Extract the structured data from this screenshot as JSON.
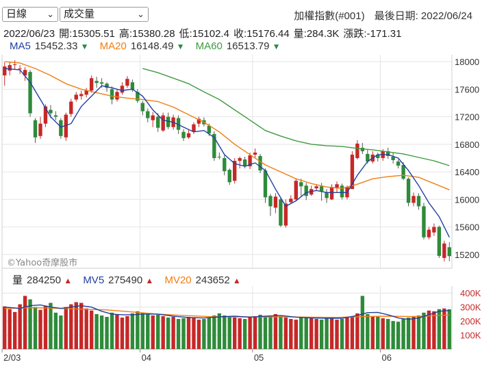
{
  "controls": {
    "period": {
      "value": "日線"
    },
    "indicator": {
      "value": "成交量"
    }
  },
  "header": {
    "title": "加權指數(#001)",
    "last_date_label": "最後日期: 2022/06/24"
  },
  "ohlc": {
    "date": "2022/06/23",
    "open": "開:15305.51",
    "high": "高:15380.28",
    "low": "低:15102.4",
    "close": "收:15176.44",
    "volume": "量:284.3K",
    "change": "漲跌:-171.31"
  },
  "ma": [
    {
      "label": "MA5",
      "value": "15452.33",
      "dir": "down",
      "color": "#1f3fa0"
    },
    {
      "label": "MA20",
      "value": "16148.49",
      "dir": "down",
      "color": "#f07d12"
    },
    {
      "label": "MA60",
      "value": "16513.79",
      "dir": "down",
      "color": "#3f9a3f"
    }
  ],
  "volume_legend": [
    {
      "label": "量",
      "value": "284250",
      "dir": "up",
      "color": "#222222"
    },
    {
      "label": "MV5",
      "value": "275490",
      "dir": "up",
      "color": "#1f3fa0"
    },
    {
      "label": "MV20",
      "value": "243652",
      "dir": "up",
      "color": "#f07d12"
    }
  ],
  "watermark": "©Yahoo奇摩股市",
  "colors": {
    "up": "#c62828",
    "down": "#2e8b3a",
    "grid": "#e4e4e4",
    "ma5": "#1f3fa0",
    "ma20": "#f07d12",
    "ma60": "#3f9a3f"
  },
  "chart_data": {
    "type": "candlestick",
    "price_axis": {
      "min": 15000,
      "max": 18100,
      "ticks": [
        15200,
        15600,
        16000,
        16400,
        16800,
        17200,
        17600,
        18000
      ],
      "tick_labels": [
        "15200",
        "15600",
        "16000",
        "16400",
        "16800",
        "17200",
        "17600",
        "18000"
      ]
    },
    "volume_axis": {
      "min": 0,
      "max": 450000,
      "ticks": [
        100000,
        200000,
        300000,
        400000
      ],
      "tick_labels": [
        "100K",
        "200K",
        "300K",
        "400K"
      ]
    },
    "x_ticks": [
      {
        "index": 0,
        "label": "2/03"
      },
      {
        "index": 27,
        "label": "04"
      },
      {
        "index": 49,
        "label": "05"
      },
      {
        "index": 74,
        "label": "06"
      }
    ],
    "candles": [
      [
        17800,
        17930,
        17990,
        17650
      ],
      [
        17870,
        17950,
        18000,
        17800
      ],
      [
        17950,
        17960,
        18020,
        17880
      ],
      [
        17890,
        17900,
        17950,
        17820
      ],
      [
        17800,
        17880,
        17920,
        17720
      ],
      [
        17850,
        17250,
        17880,
        17200
      ],
      [
        17150,
        16900,
        17180,
        16820
      ],
      [
        16920,
        17100,
        17200,
        16880
      ],
      [
        17100,
        17350,
        17380,
        17050
      ],
      [
        17300,
        17250,
        17370,
        17180
      ],
      [
        17220,
        17200,
        17280,
        17150
      ],
      [
        17150,
        16920,
        17180,
        16880
      ],
      [
        16900,
        17230,
        17260,
        16850
      ],
      [
        17240,
        17420,
        17460,
        17200
      ],
      [
        17450,
        17520,
        17560,
        17420
      ],
      [
        17500,
        17530,
        17580,
        17450
      ],
      [
        17520,
        17580,
        17620,
        17480
      ],
      [
        17580,
        17760,
        17800,
        17550
      ],
      [
        17720,
        17690,
        17780,
        17620
      ],
      [
        17700,
        17680,
        17760,
        17620
      ],
      [
        17680,
        17620,
        17700,
        17560
      ],
      [
        17600,
        17450,
        17640,
        17380
      ],
      [
        17450,
        17560,
        17600,
        17420
      ],
      [
        17550,
        17650,
        17700,
        17520
      ],
      [
        17650,
        17750,
        17790,
        17620
      ],
      [
        17700,
        17590,
        17740,
        17560
      ],
      [
        17560,
        17430,
        17600,
        17400
      ],
      [
        17400,
        17280,
        17430,
        17220
      ],
      [
        17280,
        17180,
        17320,
        17120
      ],
      [
        17150,
        17220,
        17270,
        17050
      ],
      [
        17200,
        17040,
        17250,
        16980
      ],
      [
        17000,
        17220,
        17260,
        16980
      ],
      [
        17200,
        17050,
        17260,
        17020
      ],
      [
        17050,
        17190,
        17230,
        17010
      ],
      [
        17180,
        17010,
        17220,
        16950
      ],
      [
        16980,
        16890,
        17020,
        16850
      ],
      [
        16900,
        16960,
        17010,
        16880
      ],
      [
        16980,
        17090,
        17120,
        16950
      ],
      [
        17100,
        17170,
        17200,
        17050
      ],
      [
        17150,
        17090,
        17190,
        17060
      ],
      [
        17070,
        16960,
        17100,
        16920
      ],
      [
        16950,
        16600,
        16990,
        16560
      ],
      [
        16620,
        16610,
        16680,
        16580
      ],
      [
        16600,
        16410,
        16640,
        16350
      ],
      [
        16430,
        16250,
        16450,
        16210
      ],
      [
        16270,
        16560,
        16600,
        16230
      ],
      [
        16560,
        16600,
        16620,
        16450
      ],
      [
        16580,
        16480,
        16620,
        16450
      ],
      [
        16480,
        16640,
        16680,
        16440
      ],
      [
        16650,
        16680,
        16740,
        16600
      ],
      [
        16630,
        16420,
        16660,
        16380
      ],
      [
        16420,
        16030,
        16450,
        15950
      ],
      [
        16050,
        15900,
        16080,
        15760
      ],
      [
        15880,
        16040,
        16090,
        15800
      ],
      [
        16000,
        15620,
        16030,
        15600
      ],
      [
        15620,
        15940,
        16000,
        15590
      ],
      [
        15960,
        16010,
        16060,
        15940
      ],
      [
        16000,
        16270,
        16300,
        15980
      ],
      [
        16250,
        16190,
        16300,
        16050
      ],
      [
        16200,
        16050,
        16240,
        15990
      ],
      [
        16070,
        16150,
        16200,
        16050
      ],
      [
        16160,
        16190,
        16220,
        16120
      ],
      [
        16190,
        16120,
        16240,
        15980
      ],
      [
        16100,
        16020,
        16150,
        15950
      ],
      [
        16000,
        16180,
        16220,
        15990
      ],
      [
        16160,
        16220,
        16260,
        16100
      ],
      [
        16200,
        16030,
        16230,
        16000
      ],
      [
        16030,
        16180,
        16200,
        16000
      ],
      [
        16150,
        16650,
        16700,
        16150
      ],
      [
        16600,
        16810,
        16860,
        16580
      ],
      [
        16750,
        16700,
        16820,
        16660
      ],
      [
        16660,
        16550,
        16720,
        16520
      ],
      [
        16550,
        16650,
        16700,
        16520
      ],
      [
        16650,
        16600,
        16680,
        16550
      ],
      [
        16600,
        16700,
        16730,
        16560
      ],
      [
        16700,
        16630,
        16750,
        16590
      ],
      [
        16620,
        16570,
        16680,
        16520
      ],
      [
        16550,
        16490,
        16580,
        16450
      ],
      [
        16500,
        16300,
        16540,
        16280
      ],
      [
        16300,
        15950,
        16320,
        15900
      ],
      [
        15950,
        16050,
        16100,
        15900
      ],
      [
        16050,
        15900,
        16090,
        15850
      ],
      [
        15900,
        15450,
        15950,
        15420
      ],
      [
        15450,
        15560,
        15600,
        15420
      ],
      [
        15520,
        15600,
        15650,
        15470
      ],
      [
        15600,
        15180,
        15620,
        15150
      ],
      [
        15150,
        15360,
        15400,
        15100
      ],
      [
        15305.51,
        15176.44,
        15380.28,
        15102.4
      ]
    ],
    "volumes": [
      305000,
      285000,
      265000,
      320000,
      380000,
      355000,
      300000,
      280000,
      310000,
      330000,
      260000,
      240000,
      300000,
      320000,
      335000,
      330000,
      290000,
      275000,
      250000,
      240000,
      230000,
      260000,
      245000,
      225000,
      235000,
      255000,
      270000,
      260000,
      250000,
      240000,
      245000,
      235000,
      225000,
      230000,
      215000,
      220000,
      230000,
      225000,
      210000,
      215000,
      225000,
      240000,
      255000,
      240000,
      230000,
      225000,
      220000,
      215000,
      225000,
      235000,
      245000,
      230000,
      240000,
      250000,
      235000,
      225000,
      215000,
      210000,
      225000,
      230000,
      230000,
      215000,
      210000,
      220000,
      225000,
      210000,
      215000,
      225000,
      230000,
      255000,
      380000,
      250000,
      235000,
      230000,
      220000,
      215000,
      200000,
      195000,
      215000,
      225000,
      235000,
      240000,
      260000,
      275000,
      270000,
      285000,
      290000,
      284250
    ],
    "ma5": [
      [
        0,
        17900
      ],
      [
        3,
        17880
      ],
      [
        5,
        17700
      ],
      [
        7,
        17450
      ],
      [
        9,
        17200
      ],
      [
        11,
        17050
      ],
      [
        13,
        17100
      ],
      [
        15,
        17350
      ],
      [
        17,
        17500
      ],
      [
        19,
        17650
      ],
      [
        21,
        17620
      ],
      [
        23,
        17580
      ],
      [
        25,
        17600
      ],
      [
        27,
        17500
      ],
      [
        29,
        17300
      ],
      [
        31,
        17150
      ],
      [
        33,
        17120
      ],
      [
        35,
        17050
      ],
      [
        37,
        16980
      ],
      [
        39,
        17000
      ],
      [
        41,
        16900
      ],
      [
        43,
        16650
      ],
      [
        45,
        16520
      ],
      [
        47,
        16480
      ],
      [
        49,
        16530
      ],
      [
        51,
        16420
      ],
      [
        53,
        16150
      ],
      [
        55,
        15900
      ],
      [
        57,
        15980
      ],
      [
        59,
        16100
      ],
      [
        61,
        16130
      ],
      [
        63,
        16100
      ],
      [
        65,
        16100
      ],
      [
        67,
        16100
      ],
      [
        69,
        16350
      ],
      [
        71,
        16550
      ],
      [
        73,
        16650
      ],
      [
        75,
        16650
      ],
      [
        77,
        16600
      ],
      [
        79,
        16420
      ],
      [
        81,
        16200
      ],
      [
        83,
        15950
      ],
      [
        85,
        15750
      ],
      [
        87,
        15450
      ]
    ],
    "ma20": [
      [
        0,
        18000
      ],
      [
        3,
        17980
      ],
      [
        6,
        17900
      ],
      [
        9,
        17800
      ],
      [
        12,
        17680
      ],
      [
        15,
        17600
      ],
      [
        18,
        17550
      ],
      [
        21,
        17500
      ],
      [
        24,
        17470
      ],
      [
        27,
        17450
      ],
      [
        30,
        17420
      ],
      [
        33,
        17340
      ],
      [
        36,
        17230
      ],
      [
        39,
        17120
      ],
      [
        42,
        16980
      ],
      [
        45,
        16800
      ],
      [
        48,
        16650
      ],
      [
        51,
        16500
      ],
      [
        54,
        16400
      ],
      [
        57,
        16300
      ],
      [
        60,
        16230
      ],
      [
        63,
        16180
      ],
      [
        66,
        16160
      ],
      [
        69,
        16220
      ],
      [
        72,
        16300
      ],
      [
        75,
        16330
      ],
      [
        78,
        16350
      ],
      [
        81,
        16320
      ],
      [
        84,
        16230
      ],
      [
        87,
        16140
      ]
    ],
    "ma60": [
      [
        27,
        17900
      ],
      [
        30,
        17840
      ],
      [
        33,
        17760
      ],
      [
        36,
        17680
      ],
      [
        39,
        17560
      ],
      [
        42,
        17450
      ],
      [
        45,
        17300
      ],
      [
        48,
        17150
      ],
      [
        51,
        17000
      ],
      [
        54,
        16920
      ],
      [
        57,
        16850
      ],
      [
        60,
        16800
      ],
      [
        63,
        16780
      ],
      [
        66,
        16770
      ],
      [
        69,
        16740
      ],
      [
        72,
        16720
      ],
      [
        75,
        16690
      ],
      [
        78,
        16660
      ],
      [
        81,
        16610
      ],
      [
        84,
        16560
      ],
      [
        87,
        16490
      ]
    ],
    "mv5": [
      [
        0,
        300000
      ],
      [
        3,
        290000
      ],
      [
        5,
        310000
      ],
      [
        7,
        315000
      ],
      [
        9,
        300000
      ],
      [
        11,
        290000
      ],
      [
        13,
        300000
      ],
      [
        15,
        310000
      ],
      [
        17,
        300000
      ],
      [
        19,
        270000
      ],
      [
        21,
        250000
      ],
      [
        23,
        245000
      ],
      [
        25,
        245000
      ],
      [
        27,
        250000
      ],
      [
        30,
        250000
      ],
      [
        33,
        235000
      ],
      [
        36,
        225000
      ],
      [
        39,
        222000
      ],
      [
        42,
        230000
      ],
      [
        45,
        235000
      ],
      [
        48,
        228000
      ],
      [
        51,
        235000
      ],
      [
        54,
        240000
      ],
      [
        57,
        228000
      ],
      [
        60,
        222000
      ],
      [
        63,
        220000
      ],
      [
        66,
        220000
      ],
      [
        69,
        240000
      ],
      [
        71,
        260000
      ],
      [
        73,
        262000
      ],
      [
        75,
        245000
      ],
      [
        77,
        222000
      ],
      [
        79,
        212000
      ],
      [
        81,
        222000
      ],
      [
        83,
        245000
      ],
      [
        85,
        270000
      ],
      [
        87,
        275490
      ]
    ],
    "mv20": [
      [
        0,
        290000
      ],
      [
        5,
        295000
      ],
      [
        10,
        292000
      ],
      [
        15,
        285000
      ],
      [
        20,
        280000
      ],
      [
        25,
        265000
      ],
      [
        30,
        250000
      ],
      [
        35,
        240000
      ],
      [
        40,
        232000
      ],
      [
        45,
        230000
      ],
      [
        50,
        230000
      ],
      [
        55,
        230000
      ],
      [
        60,
        228000
      ],
      [
        65,
        226000
      ],
      [
        70,
        232000
      ],
      [
        75,
        235000
      ],
      [
        80,
        232000
      ],
      [
        85,
        240000
      ],
      [
        87,
        243652
      ]
    ]
  }
}
